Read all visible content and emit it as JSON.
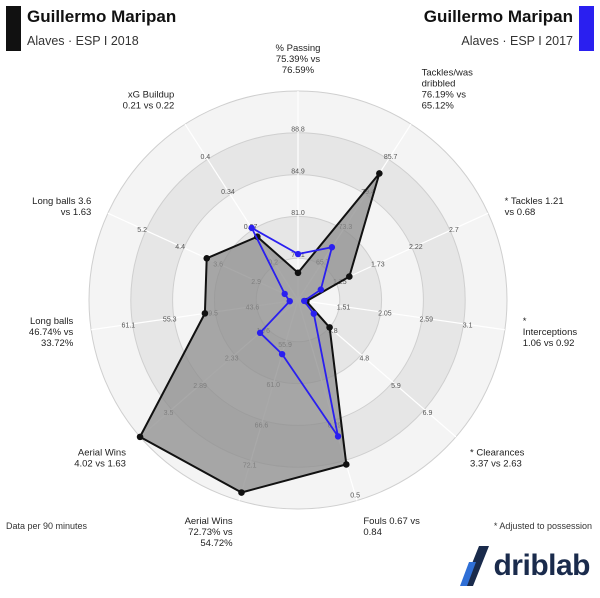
{
  "header": {
    "left": {
      "player": "Guillermo Maripan",
      "club_season": "Alaves · ESP I 2018",
      "color": "#111111"
    },
    "right": {
      "player": "Guillermo Maripan",
      "club_season": "Alaves · ESP I 2017",
      "color": "#2222ee"
    }
  },
  "footer": {
    "data_note": "Data per 90 minutes",
    "adjusted_note": "* Adjusted to possession",
    "brand": "driblab"
  },
  "colors": {
    "series_2018": "#111111",
    "series_2017": "#2a1ff0",
    "fill_2018": "#8c8c8c",
    "ring_dark": "#e2e2e2",
    "ring_light": "#f3f3f3"
  },
  "chart_data": {
    "type": "radar",
    "grid": true,
    "axes": [
      {
        "label": [
          "% Passing",
          "75.39% vs",
          "76.59%"
        ],
        "ticks": [
          "77.1",
          "81.0",
          "84.9",
          "88.8"
        ]
      },
      {
        "label": [
          "Tackles/was",
          "dribbled",
          "76.19% vs",
          "65.12%"
        ],
        "ticks": [
          "65.7",
          "73.3",
          "79.4",
          "85.7"
        ]
      },
      {
        "label": [
          "* Tackles 1.21",
          "vs 0.68"
        ],
        "ticks": [
          "1.25",
          "1.73",
          "2.22",
          "2.7"
        ]
      },
      {
        "label": [
          "*",
          "Interceptions",
          "1.06 vs 0.92"
        ],
        "ticks": [
          "1.51",
          "2.05",
          "2.59",
          "3.1"
        ]
      },
      {
        "label": [
          "* Clearances",
          "3.37 vs 2.63"
        ],
        "ticks": [
          "3.8",
          "4.8",
          "5.9",
          "6.9"
        ]
      },
      {
        "label": [
          "Fouls 0.67 vs",
          "0.84"
        ],
        "ticks": [
          "0.79",
          "0.5"
        ]
      },
      {
        "label": [
          "Aerial Wins",
          "72.73% vs",
          "54.72%"
        ],
        "ticks": [
          "55.9",
          "61.0",
          "66.6",
          "72.1"
        ]
      },
      {
        "label": [
          "Aerial Wins",
          "4.02 vs 1.63"
        ],
        "ticks": [
          "1.76",
          "2.33",
          "2.89",
          "3.5"
        ]
      },
      {
        "label": [
          "Long balls",
          "46.74% vs",
          "33.72%"
        ],
        "ticks": [
          "43.6",
          "49.5",
          "55.3",
          "61.1"
        ]
      },
      {
        "label": [
          "Long balls 3.6",
          "vs 1.63"
        ],
        "ticks": [
          "2.9",
          "3.6",
          "4.4",
          "5.2"
        ]
      },
      {
        "label": [
          "xG Buildup",
          "0.21 vs 0.22"
        ],
        "ticks": [
          "0.2",
          "0.27",
          "0.34",
          "0.4"
        ]
      }
    ],
    "series": [
      {
        "name": "Alaves · ESP I 2018",
        "normalized": [
          0.13,
          0.72,
          0.27,
          0.04,
          0.2,
          0.82,
          0.96,
          1.0,
          0.45,
          0.48,
          0.36
        ]
      },
      {
        "name": "Alaves · ESP I 2017",
        "normalized": [
          0.22,
          0.3,
          0.12,
          0.03,
          0.1,
          0.68,
          0.27,
          0.24,
          0.04,
          0.07,
          0.41
        ]
      }
    ]
  }
}
